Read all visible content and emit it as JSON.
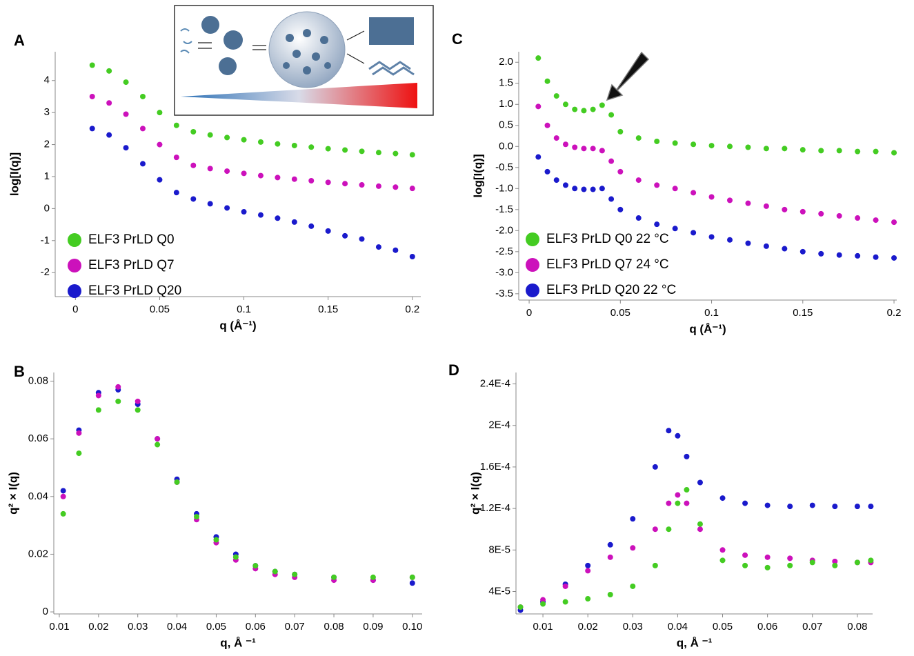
{
  "chart_data": [
    {
      "type": "scatter",
      "panel_label": "A",
      "xlabel": "q (Å⁻¹)",
      "ylabel": "log[I(q)]",
      "x": [
        0.01,
        0.02,
        0.03,
        0.04,
        0.05,
        0.06,
        0.07,
        0.08,
        0.09,
        0.1,
        0.11,
        0.12,
        0.13,
        0.14,
        0.15,
        0.16,
        0.17,
        0.18,
        0.19,
        0.2
      ],
      "series": [
        {
          "name": "ELF3 PrLD Q0",
          "color": "#44cc22",
          "values": [
            4.48,
            4.3,
            3.95,
            3.5,
            3.0,
            2.6,
            2.4,
            2.3,
            2.22,
            2.15,
            2.08,
            2.02,
            1.97,
            1.92,
            1.87,
            1.83,
            1.79,
            1.75,
            1.72,
            1.68
          ]
        },
        {
          "name": "ELF3 PrLD Q7",
          "color": "#cc11bb",
          "values": [
            3.5,
            3.3,
            2.95,
            2.5,
            2.0,
            1.6,
            1.35,
            1.25,
            1.17,
            1.1,
            1.03,
            0.97,
            0.92,
            0.87,
            0.82,
            0.78,
            0.74,
            0.7,
            0.67,
            0.63
          ]
        },
        {
          "name": "ELF3 PrLD Q20",
          "color": "#1a1acc",
          "values": [
            2.5,
            2.3,
            1.9,
            1.4,
            0.9,
            0.5,
            0.3,
            0.15,
            0.02,
            -0.1,
            -0.2,
            -0.3,
            -0.42,
            -0.55,
            -0.7,
            -0.85,
            -0.95,
            -1.2,
            -1.3,
            -1.5
          ]
        }
      ],
      "xlim": [
        -0.012,
        0.205
      ],
      "ylim": [
        -2.75,
        4.9
      ],
      "xticks": [
        0,
        0.05,
        0.1,
        0.15,
        0.2
      ],
      "yticks": [
        -2,
        -1,
        0,
        1,
        2,
        3,
        4
      ]
    },
    {
      "type": "scatter",
      "panel_label": "B",
      "xlabel": "q, Å ⁻¹",
      "ylabel": "q² × I(q)",
      "x": [
        0.011,
        0.015,
        0.02,
        0.025,
        0.03,
        0.035,
        0.04,
        0.045,
        0.05,
        0.055,
        0.06,
        0.065,
        0.07,
        0.08,
        0.09,
        0.1
      ],
      "series": [
        {
          "color": "#1a1acc",
          "values": [
            0.042,
            0.063,
            0.076,
            0.077,
            0.072,
            0.06,
            0.046,
            0.034,
            0.026,
            0.02,
            0.016,
            0.014,
            0.013,
            0.012,
            0.011,
            0.01
          ]
        },
        {
          "color": "#cc11bb",
          "values": [
            0.04,
            0.062,
            0.075,
            0.078,
            0.073,
            0.06,
            0.045,
            0.032,
            0.024,
            0.018,
            0.015,
            0.013,
            0.012,
            0.011,
            0.011,
            0.012
          ]
        },
        {
          "color": "#44cc22",
          "values": [
            0.034,
            0.055,
            0.07,
            0.073,
            0.07,
            0.058,
            0.045,
            0.033,
            0.025,
            0.019,
            0.016,
            0.014,
            0.013,
            0.012,
            0.012,
            0.012
          ]
        }
      ],
      "xlim": [
        0.0086,
        0.1025
      ],
      "ylim": [
        -0.0007,
        0.083
      ],
      "xticks": [
        0.01,
        0.02,
        0.03,
        0.04,
        0.05,
        0.06,
        0.07,
        0.08,
        0.09,
        {
          "value": 0.1,
          "label": "0.10"
        }
      ],
      "yticks": [
        0,
        0.02,
        0.04,
        0.06,
        0.08
      ]
    },
    {
      "type": "scatter",
      "panel_label": "C",
      "xlabel": "q (Å⁻¹)",
      "ylabel": "log[I(q)]",
      "x": [
        0.005,
        0.01,
        0.015,
        0.02,
        0.025,
        0.03,
        0.035,
        0.04,
        0.045,
        0.05,
        0.06,
        0.07,
        0.08,
        0.09,
        0.1,
        0.11,
        0.12,
        0.13,
        0.14,
        0.15,
        0.16,
        0.17,
        0.18,
        0.19,
        0.2
      ],
      "series": [
        {
          "name": "ELF3 PrLD Q0 22 °C",
          "color": "#44cc22",
          "values": [
            2.1,
            1.55,
            1.2,
            1.0,
            0.88,
            0.85,
            0.88,
            0.98,
            0.75,
            0.35,
            0.2,
            0.12,
            0.08,
            0.05,
            0.02,
            0.0,
            -0.02,
            -0.05,
            -0.05,
            -0.08,
            -0.1,
            -0.1,
            -0.12,
            -0.12,
            -0.15
          ]
        },
        {
          "name": "ELF3 PrLD Q7 24 °C",
          "color": "#cc11bb",
          "values": [
            0.95,
            0.5,
            0.2,
            0.05,
            -0.02,
            -0.05,
            -0.05,
            -0.1,
            -0.35,
            -0.6,
            -0.8,
            -0.92,
            -1.0,
            -1.1,
            -1.2,
            -1.28,
            -1.35,
            -1.42,
            -1.5,
            -1.55,
            -1.6,
            -1.65,
            -1.7,
            -1.75,
            -1.8
          ]
        },
        {
          "name": "ELF3 PrLD Q20 22 °C",
          "color": "#1a1acc",
          "values": [
            -0.25,
            -0.6,
            -0.8,
            -0.92,
            -1.0,
            -1.02,
            -1.02,
            -1.0,
            -1.25,
            -1.5,
            -1.7,
            -1.85,
            -1.95,
            -2.05,
            -2.15,
            -2.22,
            -2.3,
            -2.37,
            -2.43,
            -2.5,
            -2.55,
            -2.58,
            -2.6,
            -2.63,
            -2.65
          ]
        }
      ],
      "xlim": [
        -0.0057,
        0.2015
      ],
      "ylim": [
        -3.65,
        2.25
      ],
      "xticks": [
        0,
        0.05,
        0.1,
        0.15,
        0.2
      ],
      "yticks": [
        {
          "value": 2,
          "label": "2.0"
        },
        1.5,
        {
          "value": 1,
          "label": "1.0"
        },
        0.5,
        {
          "value": 0,
          "label": "0.0"
        },
        -0.5,
        {
          "value": -1,
          "label": "-1.0"
        },
        -1.5,
        {
          "value": -2,
          "label": "-2.0"
        },
        -2.5,
        {
          "value": -3,
          "label": "-3.0"
        },
        -3.5
      ]
    },
    {
      "type": "scatter",
      "panel_label": "D",
      "xlabel": "q, Å ⁻¹",
      "ylabel": "q² × I(q)",
      "x": [
        0.005,
        0.01,
        0.015,
        0.02,
        0.025,
        0.03,
        0.035,
        0.038,
        0.04,
        0.042,
        0.045,
        0.05,
        0.055,
        0.06,
        0.065,
        0.07,
        0.075,
        0.08,
        0.083
      ],
      "series": [
        {
          "color": "#1a1acc",
          "values": [
            2.2e-05,
            3e-05,
            4.7e-05,
            6.5e-05,
            8.5e-05,
            0.00011,
            0.00016,
            0.000195,
            0.00019,
            0.00017,
            0.000145,
            0.00013,
            0.000125,
            0.000123,
            0.000122,
            0.000123,
            0.000122,
            0.000122,
            0.000122
          ]
        },
        {
          "color": "#cc11bb",
          "values": [
            2.5e-05,
            3.2e-05,
            4.5e-05,
            6e-05,
            7.3e-05,
            8.2e-05,
            0.0001,
            0.000125,
            0.000133,
            0.000125,
            0.0001,
            8e-05,
            7.5e-05,
            7.3e-05,
            7.2e-05,
            7e-05,
            6.9e-05,
            6.8e-05,
            6.8e-05
          ]
        },
        {
          "color": "#44cc22",
          "values": [
            2.5e-05,
            2.8e-05,
            3e-05,
            3.3e-05,
            3.7e-05,
            4.5e-05,
            6.5e-05,
            0.0001,
            0.000125,
            0.000138,
            0.000105,
            7e-05,
            6.5e-05,
            6.3e-05,
            6.5e-05,
            6.8e-05,
            6.5e-05,
            6.8e-05,
            7e-05
          ]
        }
      ],
      "xlim": [
        0.004,
        0.0834
      ],
      "ylim": [
        1.84e-05,
        0.000251
      ],
      "xticks": [
        0.01,
        0.02,
        0.03,
        0.04,
        0.05,
        0.06,
        0.07,
        0.08
      ],
      "yticks": [
        {
          "value": 4e-05,
          "label": "4E-5"
        },
        {
          "value": 8e-05,
          "label": "8E-5"
        },
        {
          "value": 0.00012,
          "label": "1.2E-4"
        },
        {
          "value": 0.00016,
          "label": "1.6E-4"
        },
        {
          "value": 0.0002,
          "label": "2E-4"
        },
        {
          "value": 0.00024,
          "label": "2.4E-4"
        }
      ]
    }
  ]
}
